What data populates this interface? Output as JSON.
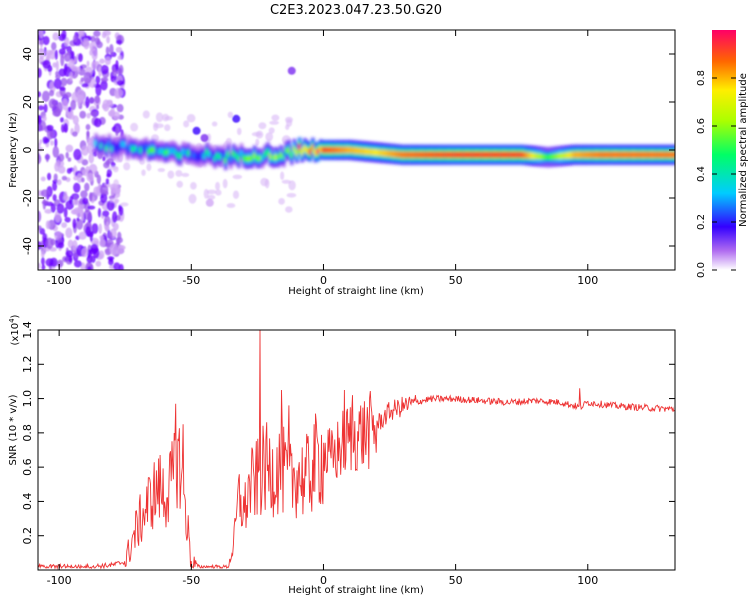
{
  "title": "C2E3.2023.047.23.50.G20",
  "chart_data": [
    {
      "type": "heatmap",
      "xlabel": "Height of straight line (km)",
      "ylabel": "Frequency (Hz)",
      "xlim": [
        -108,
        133
      ],
      "ylim": [
        -50,
        50
      ],
      "xticks": [
        -100,
        -50,
        0,
        50,
        100
      ],
      "yticks": [
        -40,
        -20,
        0,
        20,
        40
      ],
      "colorbar": {
        "label": "Normalized spectral amplitude",
        "range": [
          0,
          1
        ],
        "ticks": [
          "0.0",
          "0.2",
          "0.4",
          "0.6",
          "0.8"
        ]
      },
      "ridge": {
        "x": [
          -85,
          -75,
          -65,
          -55,
          -45,
          -35,
          -25,
          -15,
          -10,
          0,
          10,
          20,
          30,
          50,
          75,
          85,
          95,
          105,
          133
        ],
        "frequency": [
          2,
          1,
          0,
          -2,
          -2,
          -3,
          -2,
          -2,
          0,
          0,
          0,
          -1,
          -2,
          -2,
          -2,
          -3,
          -2,
          -2,
          -2
        ],
        "amplitude": [
          0.3,
          0.35,
          0.4,
          0.35,
          0.3,
          0.4,
          0.45,
          0.55,
          0.8,
          0.9,
          0.8,
          0.75,
          0.85,
          0.9,
          0.9,
          0.5,
          0.8,
          0.85,
          0.85
        ]
      }
    },
    {
      "type": "line",
      "xlabel": "Height of straight line (km)",
      "ylabel": "SNR (10 * v/v)",
      "y_multiplier": "(x10",
      "y_multiplier_exp": "4",
      "y_multiplier_close": ")",
      "xlim": [
        -108,
        133
      ],
      "ylim": [
        0,
        1.4
      ],
      "xticks": [
        -100,
        -50,
        0,
        50,
        100
      ],
      "yticks": [
        "0.2",
        "0.4",
        "0.6",
        "0.8",
        "1.0",
        "1.2",
        "1.4"
      ],
      "color": "#ee3333",
      "x": [
        -108,
        -100,
        -90,
        -80,
        -75,
        -72,
        -70,
        -65,
        -62,
        -60,
        -57,
        -55,
        -53,
        -50,
        -47,
        -44,
        -40,
        -36,
        -34,
        -32,
        -30,
        -28,
        -25,
        -22,
        -20,
        -17,
        -15,
        -13,
        -10,
        -7,
        -5,
        -2,
        0,
        3,
        7,
        10,
        15,
        20,
        25,
        30,
        35,
        40,
        50,
        60,
        70,
        80,
        90,
        95,
        97,
        100,
        105,
        110,
        120,
        133
      ],
      "y": [
        0.02,
        0.02,
        0.02,
        0.03,
        0.05,
        0.2,
        0.28,
        0.45,
        0.5,
        0.45,
        0.55,
        0.7,
        0.5,
        0.05,
        0.02,
        0.02,
        0.02,
        0.02,
        0.15,
        0.45,
        0.35,
        0.5,
        0.55,
        0.62,
        0.6,
        0.62,
        0.6,
        0.52,
        0.6,
        0.55,
        0.6,
        0.68,
        0.7,
        0.66,
        0.75,
        0.8,
        0.82,
        0.85,
        0.93,
        0.96,
        0.98,
        1.0,
        1.0,
        0.99,
        0.98,
        0.99,
        0.98,
        0.96,
        0.95,
        0.98,
        0.97,
        0.96,
        0.95,
        0.94
      ],
      "spikes": [
        {
          "x": -56,
          "y": 0.97
        },
        {
          "x": -53,
          "y": 0.85
        },
        {
          "x": -24,
          "y": 1.4
        },
        {
          "x": -16,
          "y": 1.05
        },
        {
          "x": -13,
          "y": 0.96
        },
        {
          "x": 8,
          "y": 1.05
        },
        {
          "x": 11,
          "y": 1.02
        },
        {
          "x": 97,
          "y": 1.06
        }
      ]
    }
  ]
}
